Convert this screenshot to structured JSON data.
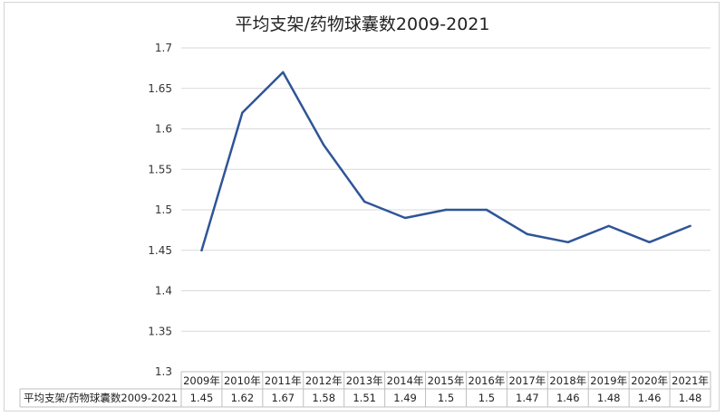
{
  "chart_data": {
    "type": "line",
    "title": "平均支架/药物球囊数2009-2021",
    "categories": [
      "2009年",
      "2010年",
      "2011年",
      "2012年",
      "2013年",
      "2014年",
      "2015年",
      "2016年",
      "2017年",
      "2018年",
      "2019年",
      "2020年",
      "2021年"
    ],
    "series": [
      {
        "name": "平均支架/药物球囊数2009-2021",
        "values": [
          1.45,
          1.62,
          1.67,
          1.58,
          1.51,
          1.49,
          1.5,
          1.5,
          1.47,
          1.46,
          1.48,
          1.46,
          1.48
        ],
        "value_labels": [
          "1.45",
          "1.62",
          "1.67",
          "1.58",
          "1.51",
          "1.49",
          "1.5",
          "1.5",
          "1.47",
          "1.46",
          "1.48",
          "1.46",
          "1.48"
        ]
      }
    ],
    "ylim": [
      1.3,
      1.7
    ],
    "yticks": [
      "1.3",
      "1.35",
      "1.4",
      "1.45",
      "1.5",
      "1.55",
      "1.6",
      "1.65",
      "1.7"
    ],
    "grid": true,
    "line_color": "#2f5597",
    "data_table": true
  }
}
